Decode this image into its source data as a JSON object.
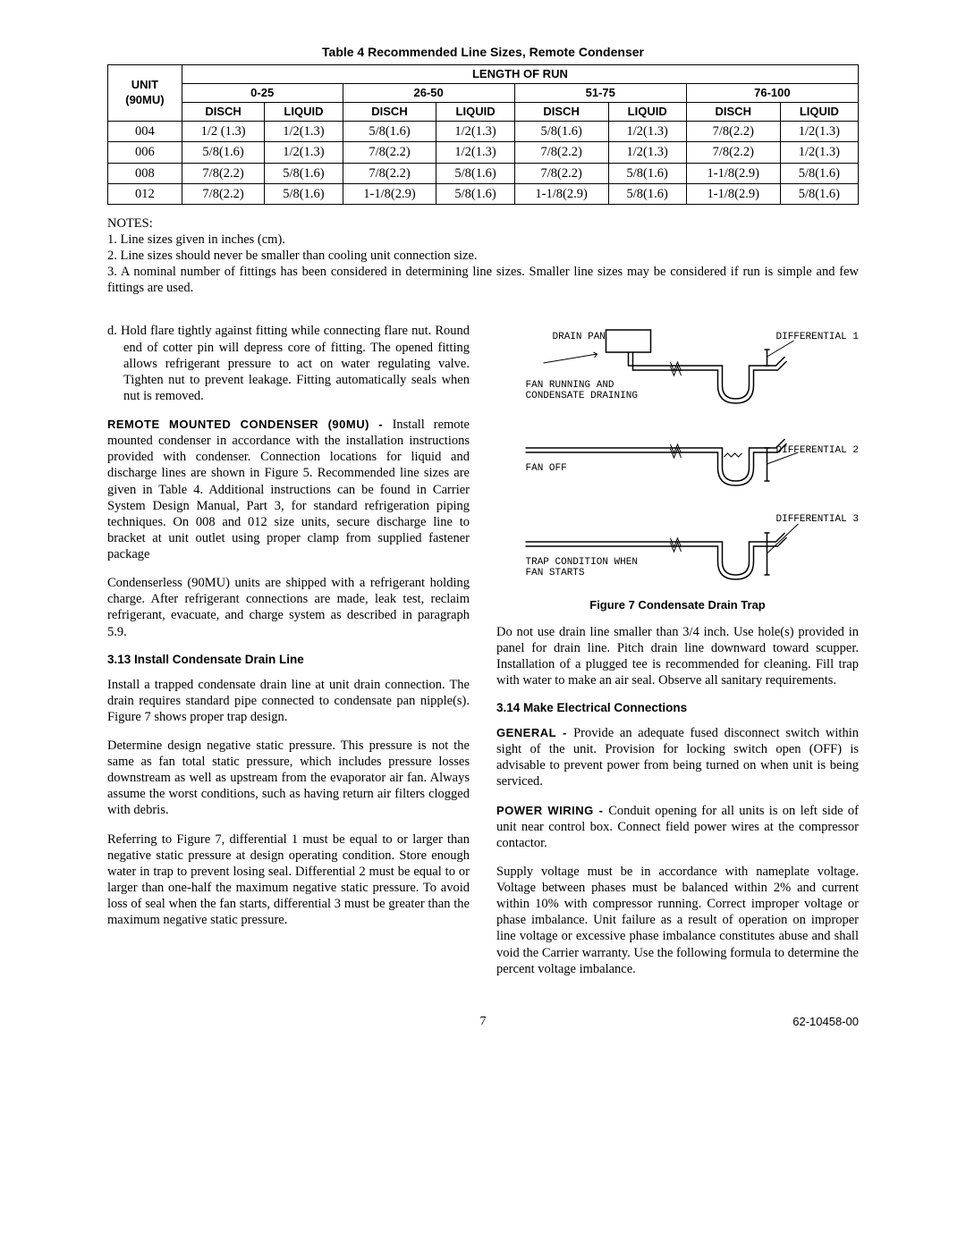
{
  "table": {
    "title": "Table 4 Recommended Line Sizes, Remote Condenser",
    "unit_header1": "UNIT",
    "unit_header2": "(90MU)",
    "length_header": "LENGTH OF RUN",
    "ranges": [
      "0-25",
      "26-50",
      "51-75",
      "76-100"
    ],
    "subheads": [
      "DISCH",
      "LIQUID"
    ],
    "rows": [
      {
        "unit": "004",
        "cells": [
          "1/2 (1.3)",
          "1/2(1.3)",
          "5/8(1.6)",
          "1/2(1.3)",
          "5/8(1.6)",
          "1/2(1.3)",
          "7/8(2.2)",
          "1/2(1.3)"
        ]
      },
      {
        "unit": "006",
        "cells": [
          "5/8(1.6)",
          "1/2(1.3)",
          "7/8(2.2)",
          "1/2(1.3)",
          "7/8(2.2)",
          "1/2(1.3)",
          "7/8(2.2)",
          "1/2(1.3)"
        ]
      },
      {
        "unit": "008",
        "cells": [
          "7/8(2.2)",
          "5/8(1.6)",
          "7/8(2.2)",
          "5/8(1.6)",
          "7/8(2.2)",
          "5/8(1.6)",
          "1-1/8(2.9)",
          "5/8(1.6)"
        ]
      },
      {
        "unit": "012",
        "cells": [
          "7/8(2.2)",
          "5/8(1.6)",
          "1-1/8(2.9)",
          "5/8(1.6)",
          "1-1/8(2.9)",
          "5/8(1.6)",
          "1-1/8(2.9)",
          "5/8(1.6)"
        ]
      }
    ]
  },
  "notes": {
    "title": "NOTES:",
    "items": [
      "1.   Line sizes given in inches (cm).",
      "2.   Line sizes should never be smaller than cooling unit connection size.",
      "3.   A nominal number of fittings has been considered in determining line sizes. Smaller line sizes may be considered if run is simple and few fittings are used."
    ]
  },
  "left": {
    "d_para": "d. Hold flare tightly against fitting while connecting flare nut. Round end of cotter pin will depress core of fitting. The opened fitting allows refrigerant pressure to act on water regulating valve. Tighten nut to prevent leakage. Fitting automatically seals when nut is removed.",
    "remote_head": "REMOTE MOUNTED CONDENSER (90MU) - ",
    "remote_text": "Install remote mounted condenser in accordance with the installation instructions provided with condenser. Connection locations for liquid and discharge lines are shown in Figure 5. Recommended line sizes are given in Table 4. Additional instructions can be found in Carrier System Design Manual, Part 3, for standard refrigeration piping techniques. On 008 and 012 size units, secure discharge line to bracket at unit outlet using proper clamp from supplied fastener package",
    "condenserless": "Condenserless (90MU) units are shipped with a refrigerant holding charge. After refrigerant connections are made, leak test, reclaim refrigerant, evacuate, and charge system as described in paragraph 5.9.",
    "sec313": "3.13   Install Condensate Drain Line",
    "p313a": "Install a trapped condensate drain line at unit drain connection. The drain requires standard pipe connected to condensate pan nipple(s). Figure 7 shows proper trap design.",
    "p313b": "Determine design negative static pressure. This pressure is not the same as fan total static pressure, which includes pressure losses downstream as well as upstream from the evaporator air fan. Always assume the worst conditions, such as having return air filters clogged with debris.",
    "p313c": "Referring to Figure 7, differential 1 must be equal to or larger than negative static pressure at design operating condition. Store enough water in trap to prevent losing seal. Differential 2 must be equal to or larger than one-half the maximum negative static pressure. To avoid loss of seal when the fan starts, differential 3 must be greater than the maximum negative static pressure."
  },
  "right": {
    "fig_labels": {
      "drain_pan": "DRAIN PAN",
      "diff1": "DIFFERENTIAL 1",
      "fan_running": "FAN RUNNING AND",
      "cond_drain": "CONDENSATE DRAINING",
      "diff2": "DIFFERENTIAL 2",
      "fan_off": "FAN OFF",
      "diff3": "DIFFERENTIAL 3",
      "trap_cond": "TRAP CONDITION WHEN",
      "fan_starts": "FAN STARTS"
    },
    "fig_caption": "Figure 7 Condensate Drain Trap",
    "p_after_fig": "Do not use drain line smaller than 3/4 inch. Use hole(s) provided in panel for drain line. Pitch drain line downward toward scupper. Installation of a plugged tee is recommended for cleaning. Fill trap with water to make an air seal. Observe all sanitary requirements.",
    "sec314": "3.14   Make Electrical Connections",
    "general_head": "GENERAL - ",
    "general_text": "Provide an adequate fused disconnect switch within sight of the unit. Provision for locking switch open (OFF) is advisable to prevent power from being turned on when unit is being serviced.",
    "power_head": "POWER WIRING - ",
    "power_text": "Conduit opening for all units is on left side of unit near control box. Connect field power wires at the compressor contactor.",
    "supply": "Supply voltage must be in accordance with nameplate voltage. Voltage between phases must be balanced within 2% and current within 10% with compressor running. Correct improper voltage or phase imbalance. Unit failure as a result of operation on improper line voltage or excessive phase imbalance constitutes abuse and shall void the Carrier warranty. Use the following formula to determine the percent voltage imbalance."
  },
  "footer": {
    "page": "7",
    "docnum": "62-10458-00"
  },
  "svg_style": {
    "stroke": "#000000",
    "stroke_width": 1.5,
    "font_family": "Courier New, monospace",
    "font_size": 11
  }
}
